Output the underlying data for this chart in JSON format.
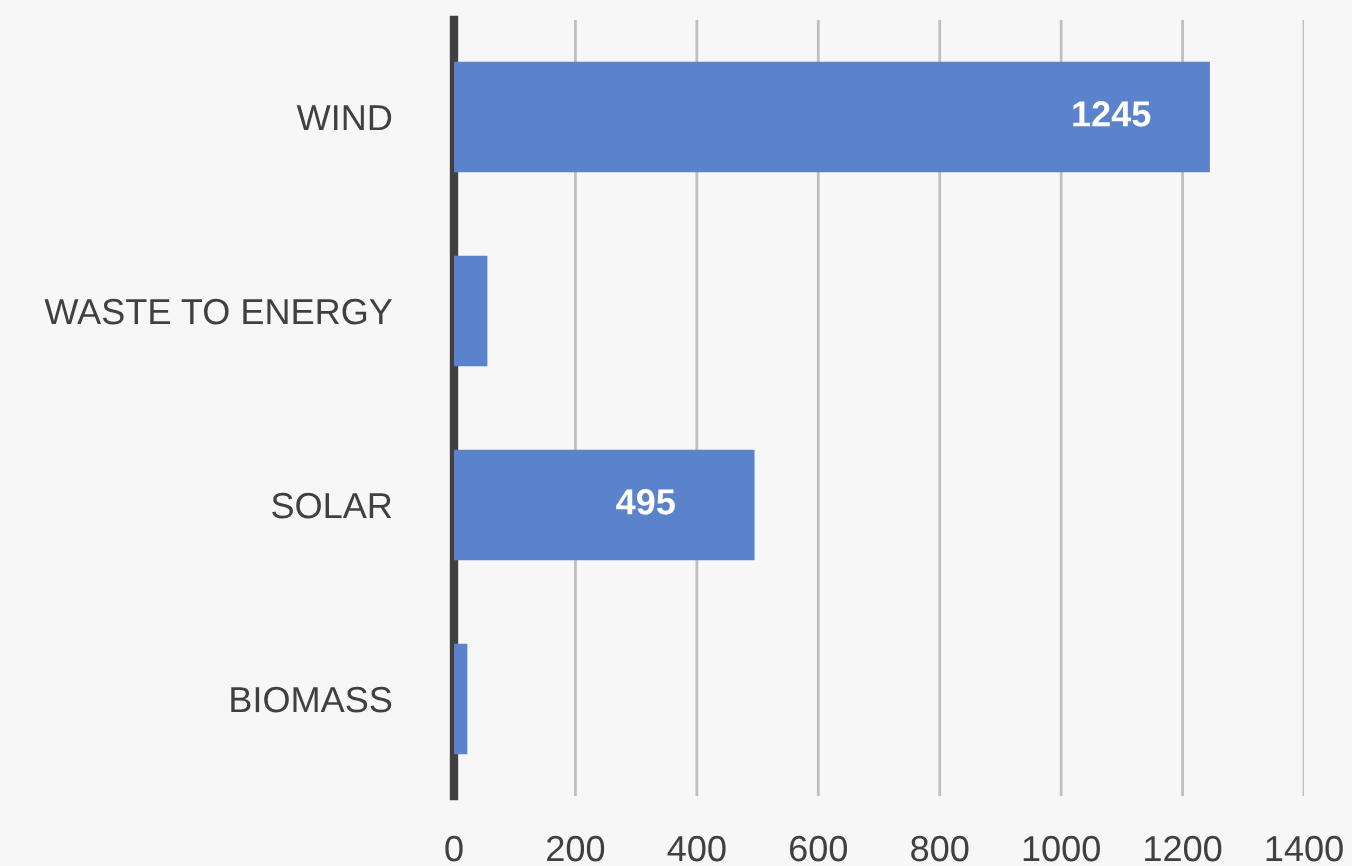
{
  "chart_data": {
    "type": "bar",
    "orientation": "horizontal",
    "categories": [
      "WIND",
      "WASTE TO ENERGY",
      "SOLAR",
      "BIOMASS"
    ],
    "values": [
      1245,
      55,
      495,
      22
    ],
    "value_labels": [
      "1245",
      null,
      "495",
      null
    ],
    "color": "#5b83cc",
    "xlim": [
      0,
      1400
    ],
    "xticks": [
      0,
      200,
      400,
      600,
      800,
      1000,
      1200,
      1400
    ],
    "grid": "x",
    "legend": false
  }
}
